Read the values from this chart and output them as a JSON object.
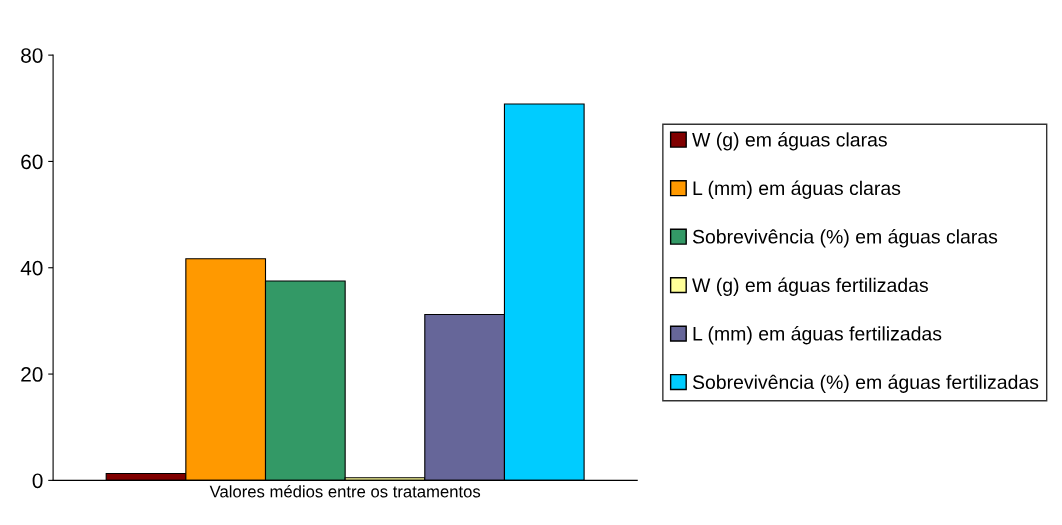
{
  "chart_data": {
    "type": "bar",
    "categories": [
      "Valores médios entre os tratamentos"
    ],
    "series": [
      {
        "name": "W (g) em águas claras",
        "color": "#800000",
        "values": [
          1.3
        ]
      },
      {
        "name": "L (mm) em águas claras",
        "color": "#ff9900",
        "values": [
          41.7
        ]
      },
      {
        "name": "Sobrevivência (%) em águas claras",
        "color": "#339966",
        "values": [
          37.5
        ]
      },
      {
        "name": "W (g) em águas fertilizadas",
        "color": "#ffff99",
        "values": [
          0.5
        ]
      },
      {
        "name": "L (mm) em águas fertilizadas",
        "color": "#666699",
        "values": [
          31.2
        ]
      },
      {
        "name": "Sobrevivência (%) em águas fertilizadas",
        "color": "#00ccff",
        "values": [
          70.8
        ]
      }
    ],
    "ylim": [
      0,
      80
    ],
    "yticks": [
      0,
      20,
      40,
      60,
      80
    ],
    "grid": false,
    "legend": "right"
  }
}
